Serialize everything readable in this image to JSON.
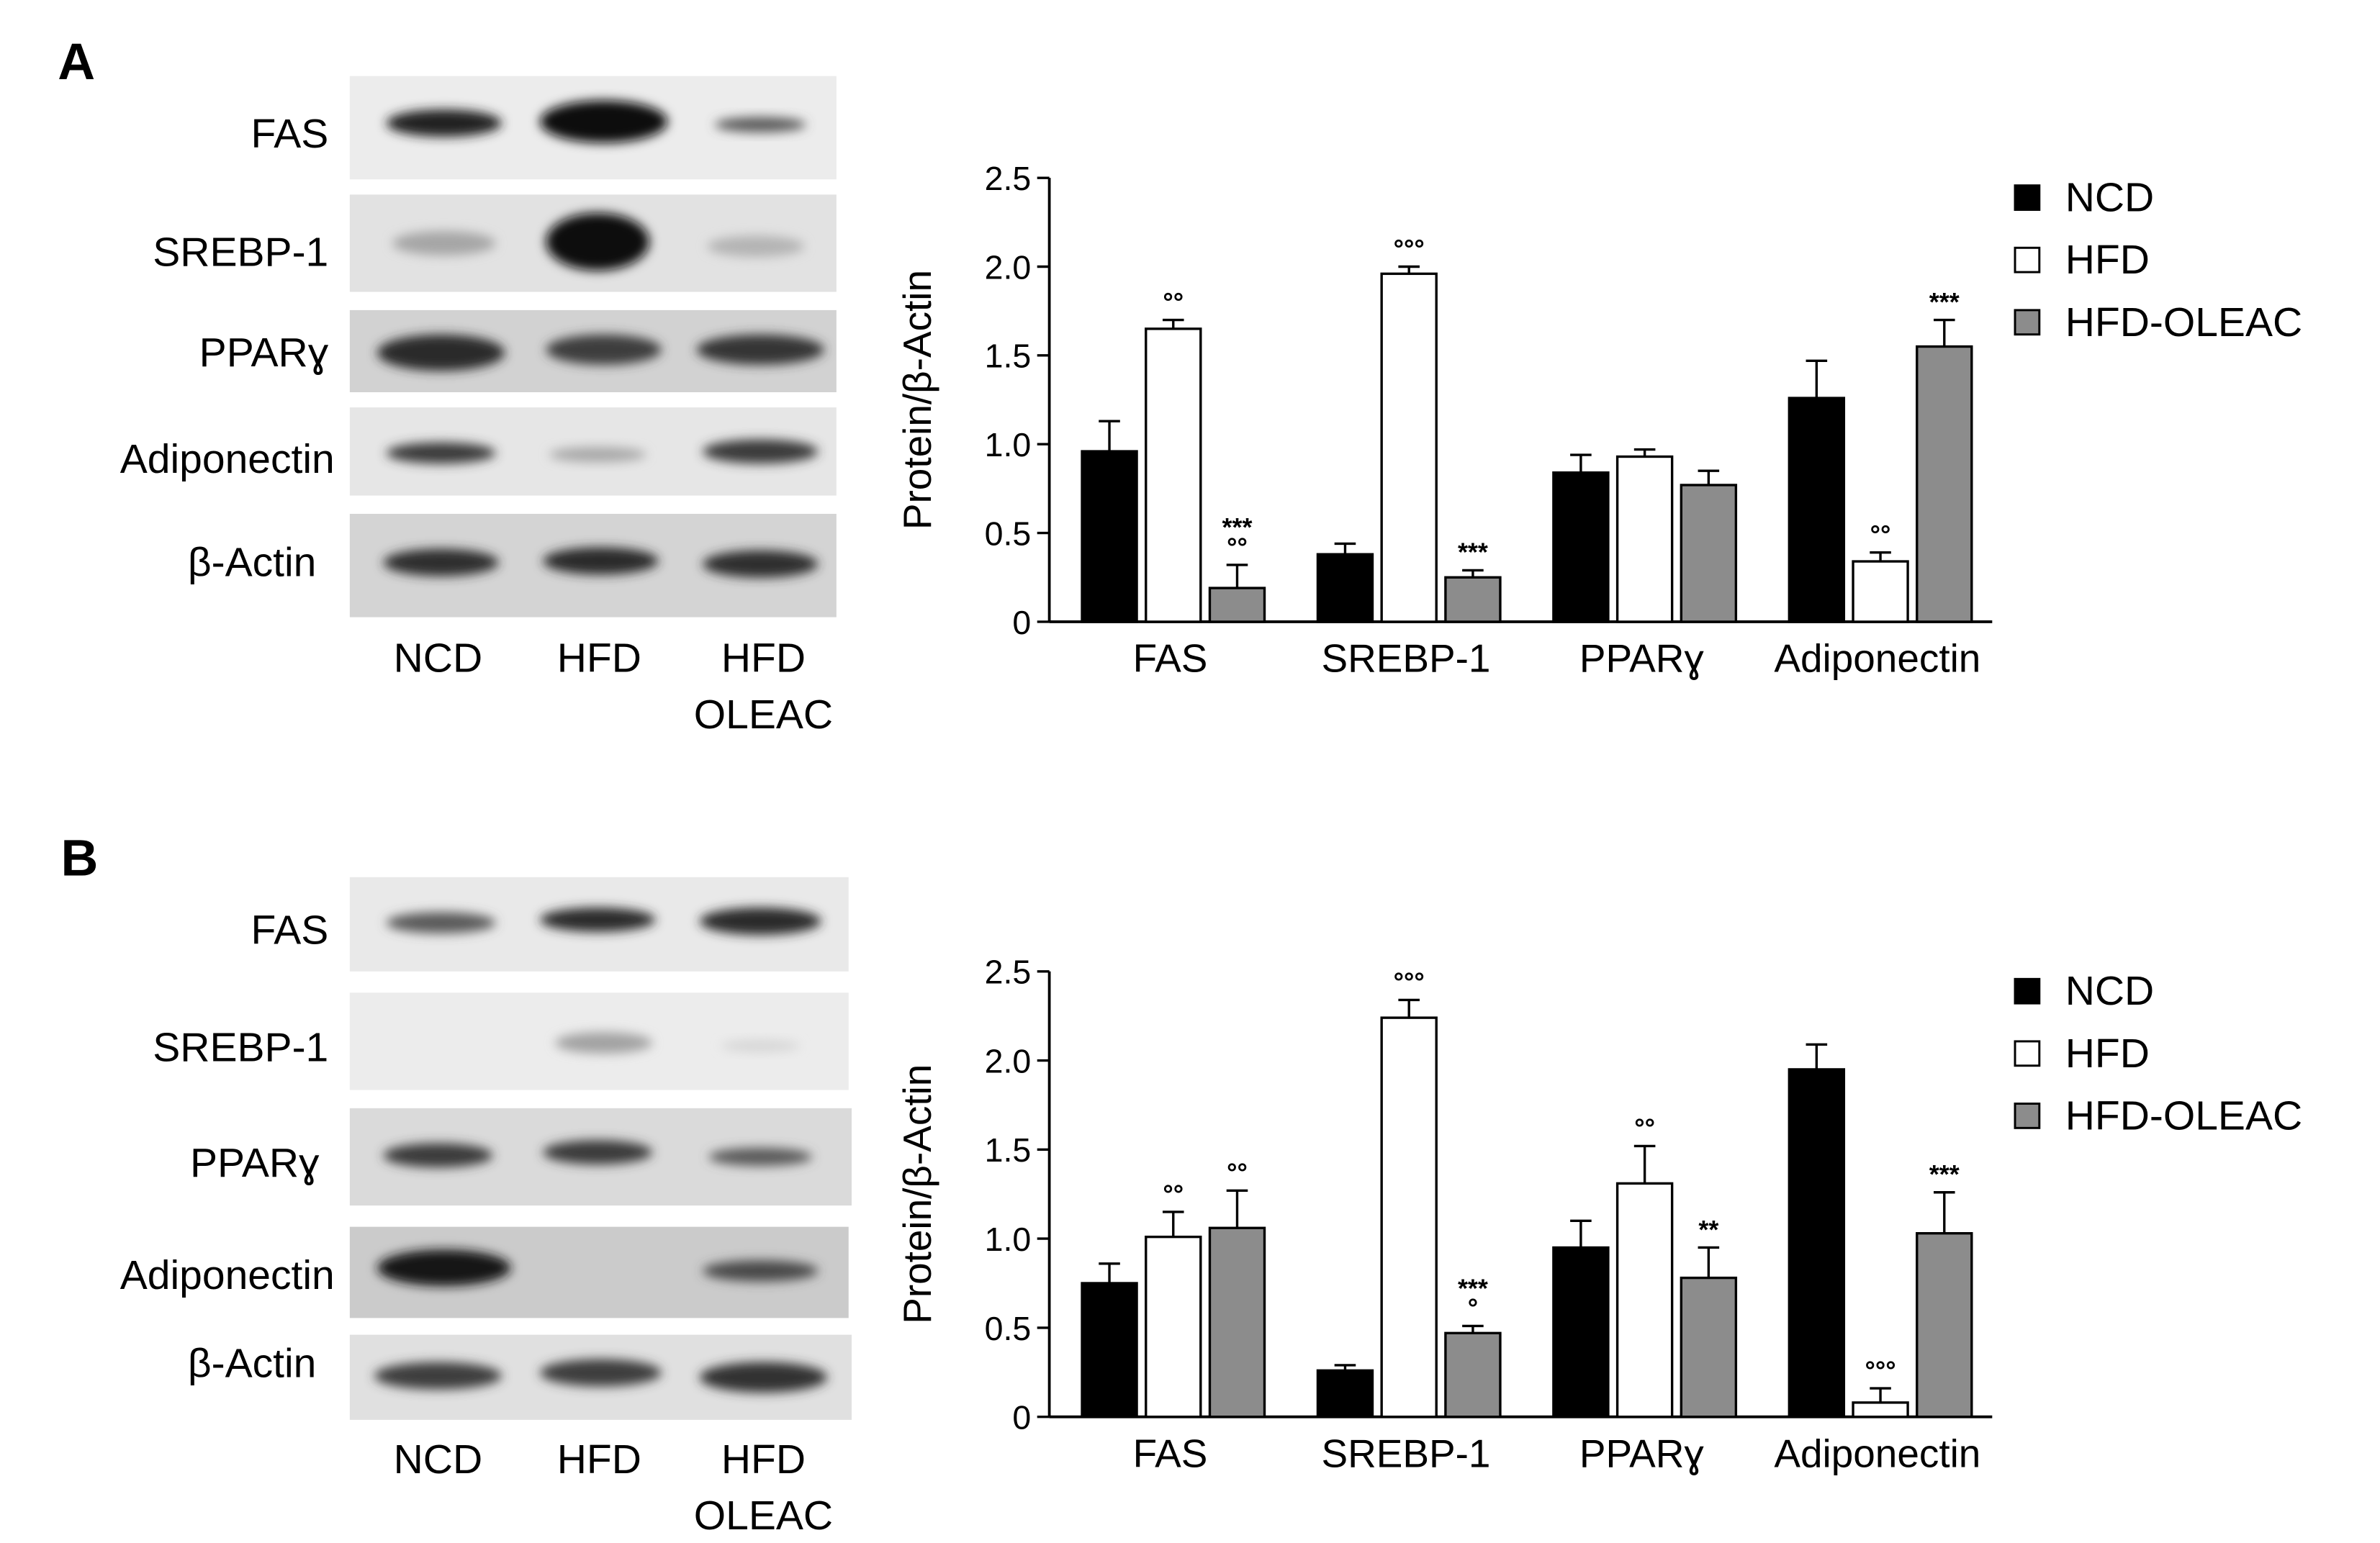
{
  "panels": [
    {
      "letter": "A",
      "blot": {
        "bands": [
          "FAS",
          "SREBP-1",
          "PPARɣ",
          "Adiponectin",
          "β-Actin"
        ],
        "lanes": [
          "NCD",
          "HFD",
          "HFD\nOLEAC"
        ]
      }
    },
    {
      "letter": "B",
      "blot": {
        "bands": [
          "FAS",
          "SREBP-1",
          "PPARɣ",
          "Adiponectin",
          "β-Actin"
        ],
        "lanes": [
          "NCD",
          "HFD",
          "HFD\nOLEAC"
        ]
      }
    }
  ],
  "colors": {
    "NCD": "#000000",
    "HFD": "#ffffff",
    "HFD-OLEAC": "#8c8c8c"
  },
  "chart_data": [
    {
      "type": "bar",
      "panel": "A",
      "categories": [
        "FAS",
        "SREBP-1",
        "PPARɣ",
        "Adiponectin"
      ],
      "ylabel": "Protein/β-Actin",
      "ylim": [
        0,
        2.5
      ],
      "yticks": [
        "0",
        "0.5",
        "1.0",
        "1.5",
        "2.0",
        "2.5"
      ],
      "legend_position": "right",
      "series": [
        {
          "name": "NCD",
          "values": [
            0.96,
            0.38,
            0.84,
            1.26
          ],
          "errors": [
            0.17,
            0.06,
            0.1,
            0.21
          ],
          "annotations": [
            "",
            "",
            "",
            ""
          ]
        },
        {
          "name": "HFD",
          "values": [
            1.65,
            1.96,
            0.93,
            0.34
          ],
          "errors": [
            0.05,
            0.04,
            0.04,
            0.05
          ],
          "annotations": [
            "°°",
            "°°°",
            "",
            "°°"
          ]
        },
        {
          "name": "HFD-OLEAC",
          "values": [
            0.19,
            0.25,
            0.77,
            1.55
          ],
          "errors": [
            0.13,
            0.04,
            0.08,
            0.15
          ],
          "annotations": [
            "***\n°°",
            "***",
            "",
            "***"
          ]
        }
      ]
    },
    {
      "type": "bar",
      "panel": "B",
      "categories": [
        "FAS",
        "SREBP-1",
        "PPARɣ",
        "Adiponectin"
      ],
      "ylabel": "Protein/β-Actin",
      "ylim": [
        0,
        2.5
      ],
      "yticks": [
        "0",
        "0.5",
        "1.0",
        "1.5",
        "2.0",
        "2.5"
      ],
      "legend_position": "right",
      "series": [
        {
          "name": "NCD",
          "values": [
            0.75,
            0.26,
            0.95,
            1.95
          ],
          "errors": [
            0.11,
            0.03,
            0.15,
            0.14
          ],
          "annotations": [
            "",
            "",
            "",
            ""
          ]
        },
        {
          "name": "HFD",
          "values": [
            1.01,
            2.24,
            1.31,
            0.08
          ],
          "errors": [
            0.14,
            0.1,
            0.21,
            0.08
          ],
          "annotations": [
            "°°",
            "°°°",
            "°°",
            "°°°"
          ]
        },
        {
          "name": "HFD-OLEAC",
          "values": [
            1.06,
            0.47,
            0.78,
            1.03
          ],
          "errors": [
            0.21,
            0.04,
            0.17,
            0.23
          ],
          "annotations": [
            "°°",
            "***\n°",
            "**",
            "***"
          ]
        }
      ]
    }
  ]
}
